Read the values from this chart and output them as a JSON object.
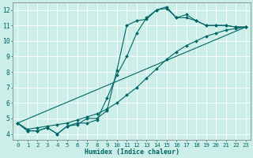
{
  "xlabel": "Humidex (Indice chaleur)",
  "background_color": "#cceee8",
  "grid_color": "#ffffff",
  "line_color": "#006666",
  "xlim": [
    -0.5,
    23.5
  ],
  "ylim": [
    3.6,
    12.5
  ],
  "xticks": [
    0,
    1,
    2,
    3,
    4,
    5,
    6,
    7,
    8,
    9,
    10,
    11,
    12,
    13,
    14,
    15,
    16,
    17,
    18,
    19,
    20,
    21,
    22,
    23
  ],
  "yticks": [
    4,
    5,
    6,
    7,
    8,
    9,
    10,
    11,
    12
  ],
  "series": [
    {
      "x": [
        0,
        1,
        2,
        3,
        4,
        5,
        6,
        7,
        8,
        9,
        10,
        11,
        12,
        13,
        14,
        15,
        16,
        17,
        18,
        19,
        20,
        21,
        22,
        23
      ],
      "y": [
        4.7,
        4.2,
        4.2,
        4.4,
        4.0,
        4.5,
        4.6,
        5.0,
        5.0,
        5.5,
        8.1,
        11.0,
        11.3,
        11.4,
        12.0,
        12.2,
        11.5,
        11.7,
        11.3,
        11.0,
        11.0,
        11.0,
        10.9,
        10.9
      ],
      "marker": "D",
      "markersize": 2.0,
      "linewidth": 0.8
    },
    {
      "x": [
        0,
        1,
        2,
        3,
        4,
        5,
        6,
        7,
        8,
        9,
        10,
        11,
        12,
        13,
        14,
        15,
        16,
        17,
        18,
        19,
        20,
        21,
        22,
        23
      ],
      "y": [
        4.7,
        4.2,
        4.2,
        4.4,
        4.0,
        4.5,
        4.7,
        4.7,
        4.9,
        6.3,
        7.8,
        9.0,
        10.5,
        11.5,
        12.0,
        12.1,
        11.5,
        11.5,
        11.3,
        11.0,
        11.0,
        11.0,
        10.9,
        10.9
      ],
      "marker": "D",
      "markersize": 2.0,
      "linewidth": 0.8
    },
    {
      "x": [
        0,
        23
      ],
      "y": [
        4.7,
        10.9
      ],
      "marker": null,
      "markersize": 0,
      "linewidth": 0.8
    },
    {
      "x": [
        0,
        1,
        2,
        3,
        4,
        5,
        6,
        7,
        8,
        9,
        10,
        11,
        12,
        13,
        14,
        15,
        16,
        17,
        18,
        19,
        20,
        21,
        22,
        23
      ],
      "y": [
        4.7,
        4.3,
        4.4,
        4.5,
        4.6,
        4.7,
        4.9,
        5.1,
        5.3,
        5.6,
        6.0,
        6.5,
        7.0,
        7.6,
        8.2,
        8.8,
        9.3,
        9.7,
        10.0,
        10.3,
        10.5,
        10.7,
        10.8,
        10.9
      ],
      "marker": "D",
      "markersize": 2.0,
      "linewidth": 0.8
    }
  ]
}
